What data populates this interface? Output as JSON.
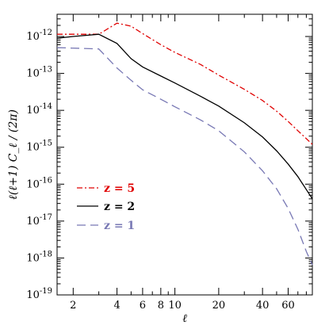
{
  "chart_data": {
    "type": "line",
    "title": "",
    "xlabel": "ℓ",
    "ylabel": "ℓ(ℓ+1) C_ℓ / (2π)",
    "xscale": "log",
    "yscale": "log",
    "xlim": [
      1.55,
      88
    ],
    "ylim": [
      1e-19,
      4e-12
    ],
    "x_tick_labels": [
      "2",
      "4",
      "6",
      "8",
      "10",
      "20",
      "40",
      "60"
    ],
    "x_tick_values": [
      2,
      4,
      6,
      8,
      10,
      20,
      40,
      60
    ],
    "y_tick_exponents": [
      -19,
      -18,
      -17,
      -16,
      -15,
      -14,
      -13,
      -12
    ],
    "grid": false,
    "legend_placement": "lower-left",
    "series": [
      {
        "name": "z = 5",
        "color": "#e00000",
        "dash": "dashdot",
        "x": [
          1.55,
          3,
          4,
          5,
          6,
          8,
          10,
          15,
          20,
          30,
          40,
          50,
          60,
          70,
          88
        ],
        "y": [
          1.15e-12,
          1.15e-12,
          2.3e-12,
          1.9e-12,
          1.2e-12,
          6e-13,
          3.7e-13,
          1.75e-13,
          9e-14,
          3.7e-14,
          1.85e-14,
          9.5e-15,
          5e-15,
          2.8e-15,
          1.2e-15
        ]
      },
      {
        "name": "z = 2",
        "color": "#000000",
        "dash": "solid",
        "x": [
          1.55,
          2,
          3,
          4,
          5,
          6,
          8,
          10,
          15,
          20,
          30,
          40,
          50,
          60,
          70,
          88
        ],
        "y": [
          9e-13,
          1e-12,
          1.15e-12,
          6.5e-13,
          2.5e-13,
          1.5e-13,
          8.5e-14,
          5.5e-14,
          2.4e-14,
          1.3e-14,
          4.6e-15,
          1.9e-15,
          8e-16,
          3.5e-16,
          1.6e-16,
          4e-17
        ]
      },
      {
        "name": "z = 1",
        "color": "#7878b4",
        "dash": "dashed",
        "x": [
          1.55,
          3,
          4,
          5,
          6,
          8,
          10,
          15,
          20,
          30,
          40,
          50,
          60,
          70,
          80,
          88
        ],
        "y": [
          5e-13,
          4.6e-13,
          1.4e-13,
          6.5e-14,
          3.6e-14,
          2e-14,
          1.25e-14,
          5.5e-15,
          2.8e-15,
          7.5e-16,
          2.3e-16,
          7.5e-17,
          2.2e-17,
          6e-18,
          1.5e-18,
          6.5e-19
        ]
      }
    ]
  }
}
